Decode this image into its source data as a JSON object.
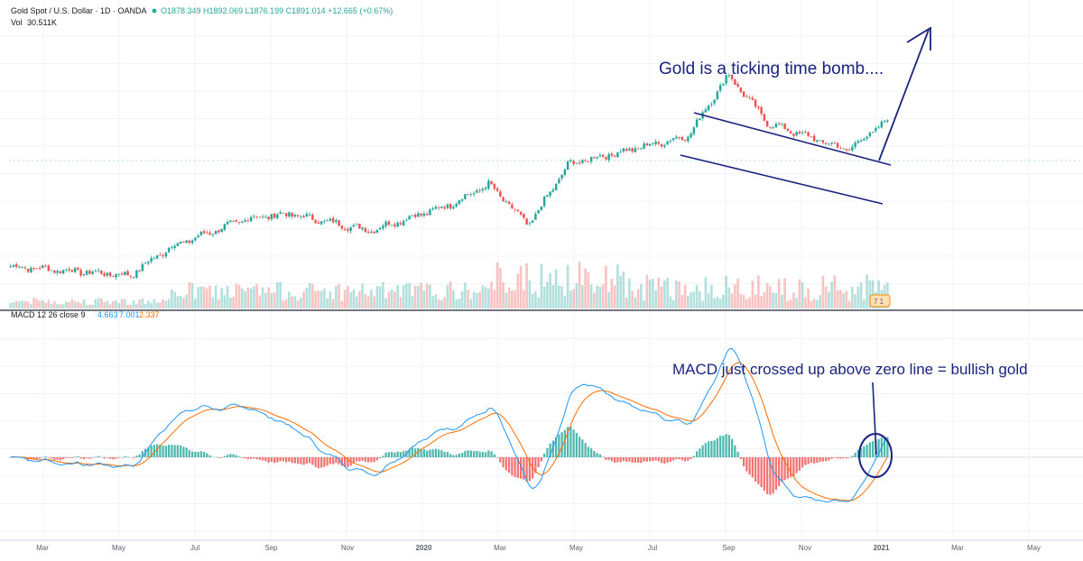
{
  "header": {
    "symbol": "Gold Spot / U.S. Dollar · 1D · OANDA",
    "ohlc": "O1878.349 H1892.069 L1876.199 C1891.014 +12.665 (+0.67%)",
    "volume_label": "Vol",
    "volume_value": "30.511K"
  },
  "macd_legend": {
    "label": "MACD 12 26 close 9",
    "macd": "4.663",
    "signal": "7.001",
    "hist": "2.337"
  },
  "annotations": {
    "gold": "Gold is a ticking time bomb....",
    "macd": "MACD just crossed up above zero line = bullish gold"
  },
  "time_axis": {
    "labels": [
      "Mar",
      "May",
      "Jul",
      "Sep",
      "Nov",
      "2020",
      "Mar",
      "May",
      "Jul",
      "Sep",
      "Nov",
      "2021",
      "Mar",
      "May"
    ]
  },
  "colors": {
    "up": "#26a69a",
    "down": "#ef5350",
    "macd_line": "#2196f3",
    "signal_line": "#ff6d00",
    "annotation": "#1a237e",
    "grid": "#f0f3fa",
    "header_dot": "#26a69a"
  },
  "chart_data": [
    {
      "type": "candlestick",
      "series_name": "Gold Spot / U.S. Dollar",
      "x_start": "2019-02",
      "x_end": "2021-05",
      "y_unit": "USD",
      "approx_close_path": [
        {
          "date": "2019-02",
          "close": 1320
        },
        {
          "date": "2019-05",
          "close": 1285
        },
        {
          "date": "2019-06",
          "close": 1395
        },
        {
          "date": "2019-08",
          "close": 1510
        },
        {
          "date": "2019-09",
          "close": 1525
        },
        {
          "date": "2019-11",
          "close": 1460
        },
        {
          "date": "2020-01",
          "close": 1560
        },
        {
          "date": "2020-02",
          "close": 1640
        },
        {
          "date": "2020-03",
          "close": 1480
        },
        {
          "date": "2020-04",
          "close": 1720
        },
        {
          "date": "2020-07",
          "close": 1830
        },
        {
          "date": "2020-08",
          "close": 2070
        },
        {
          "date": "2020-09",
          "close": 1880
        },
        {
          "date": "2020-11",
          "close": 1775
        },
        {
          "date": "2020-12",
          "close": 1891
        }
      ],
      "last_close": 1891.014,
      "drawings": [
        "descending channel",
        "breakout arrow"
      ]
    },
    {
      "type": "line",
      "title": "MACD 12 26 close 9",
      "series": [
        {
          "name": "MACD",
          "last": 4.663
        },
        {
          "name": "Signal",
          "last": 7.001
        },
        {
          "name": "Histogram",
          "last": 2.337
        }
      ],
      "zero_line": true
    }
  ]
}
